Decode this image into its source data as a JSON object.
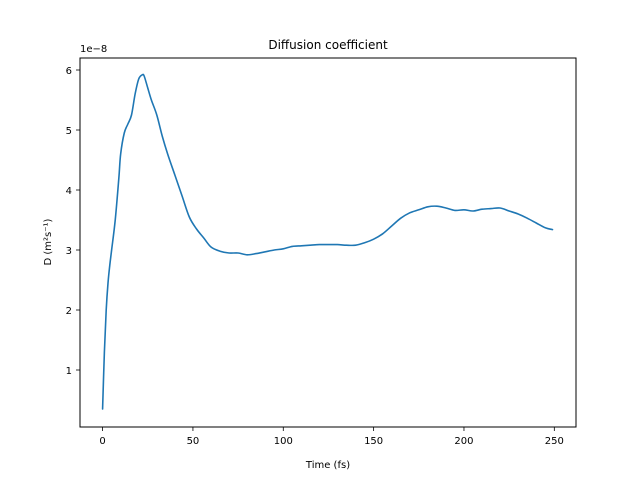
{
  "chart_data": {
    "type": "line",
    "title": "Diffusion coefficient",
    "xlabel": "Time (fs)",
    "ylabel": "D (m²s⁻¹)",
    "y_scale_label": "1e−8",
    "xlim": [
      -12.5,
      262
    ],
    "ylim": [
      0.05,
      6.2
    ],
    "x_ticks": [
      0,
      50,
      100,
      150,
      200,
      250
    ],
    "x_tick_labels": [
      "0",
      "50",
      "100",
      "150",
      "200",
      "250"
    ],
    "y_ticks": [
      1,
      2,
      3,
      4,
      5,
      6
    ],
    "y_tick_labels": [
      "1",
      "2",
      "3",
      "4",
      "5",
      "6"
    ],
    "grid": false,
    "line_color": "#1f77b4",
    "series": [
      {
        "x": [
          0,
          1,
          2,
          3,
          4,
          5,
          7,
          9,
          10,
          12,
          14,
          16,
          18,
          20,
          22,
          23,
          25,
          27,
          30,
          33,
          36,
          40,
          44,
          48,
          52,
          56,
          60,
          65,
          70,
          75,
          80,
          85,
          90,
          95,
          100,
          105,
          110,
          115,
          120,
          125,
          130,
          135,
          140,
          145,
          150,
          155,
          160,
          165,
          170,
          175,
          180,
          185,
          190,
          195,
          200,
          205,
          210,
          215,
          220,
          225,
          230,
          235,
          240,
          245,
          249
        ],
        "values": [
          0.35,
          1.3,
          2.0,
          2.45,
          2.75,
          3.0,
          3.5,
          4.2,
          4.6,
          4.95,
          5.1,
          5.25,
          5.6,
          5.85,
          5.92,
          5.9,
          5.7,
          5.5,
          5.25,
          4.9,
          4.6,
          4.25,
          3.9,
          3.55,
          3.35,
          3.2,
          3.05,
          2.98,
          2.95,
          2.95,
          2.92,
          2.94,
          2.97,
          3.0,
          3.02,
          3.06,
          3.07,
          3.08,
          3.09,
          3.09,
          3.09,
          3.08,
          3.08,
          3.12,
          3.18,
          3.27,
          3.4,
          3.53,
          3.62,
          3.67,
          3.72,
          3.73,
          3.7,
          3.66,
          3.67,
          3.65,
          3.68,
          3.69,
          3.7,
          3.65,
          3.6,
          3.53,
          3.45,
          3.37,
          3.34
        ]
      }
    ]
  }
}
